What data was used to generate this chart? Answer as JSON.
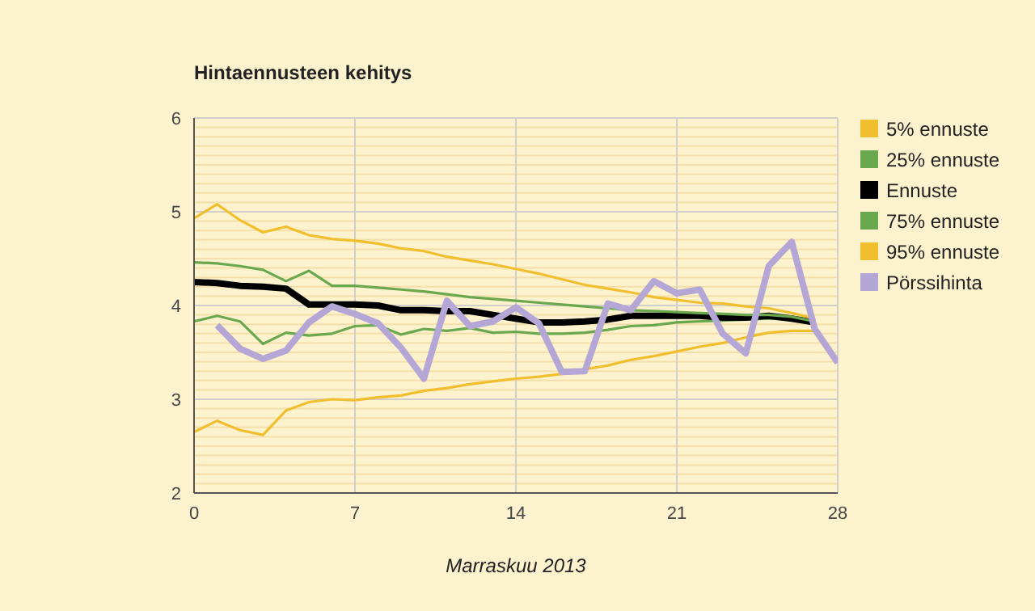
{
  "chart_data": {
    "type": "line",
    "title": "Hintaennusteen kehitys",
    "xlabel": "Marraskuu 2013",
    "x": [
      0,
      1,
      2,
      3,
      4,
      5,
      6,
      7,
      8,
      9,
      10,
      11,
      12,
      13,
      14,
      15,
      16,
      17,
      18,
      19,
      20,
      21,
      22,
      23,
      24,
      25,
      26,
      27,
      28
    ],
    "series": [
      {
        "name": "5% ennuste",
        "color": "#f1be2e",
        "values": [
          2.65,
          2.77,
          2.67,
          2.62,
          2.88,
          2.97,
          3.0,
          2.99,
          3.02,
          3.04,
          3.09,
          3.12,
          3.16,
          3.19,
          3.22,
          3.24,
          3.27,
          3.32,
          3.36,
          3.42,
          3.46,
          3.51,
          3.56,
          3.6,
          3.66,
          3.71,
          3.73,
          3.73,
          null
        ]
      },
      {
        "name": "25% ennuste",
        "color": "#6aa84f",
        "values": [
          3.83,
          3.89,
          3.83,
          3.59,
          3.71,
          3.68,
          3.7,
          3.78,
          3.79,
          3.69,
          3.75,
          3.73,
          3.76,
          3.71,
          3.72,
          3.7,
          3.7,
          3.71,
          3.74,
          3.78,
          3.79,
          3.82,
          3.83,
          3.84,
          3.85,
          3.86,
          3.85,
          3.81,
          null
        ]
      },
      {
        "name": "Ennuste",
        "color": "#000000",
        "values": [
          4.25,
          4.24,
          4.21,
          4.2,
          4.18,
          4.01,
          4.01,
          4.01,
          4.0,
          3.95,
          3.95,
          3.94,
          3.94,
          3.9,
          3.86,
          3.82,
          3.82,
          3.83,
          3.85,
          3.89,
          3.89,
          3.89,
          3.89,
          3.87,
          3.87,
          3.89,
          3.86,
          3.82,
          null
        ]
      },
      {
        "name": "75% ennuste",
        "color": "#6aa84f",
        "values": [
          4.46,
          4.45,
          4.42,
          4.38,
          4.26,
          4.37,
          4.21,
          4.21,
          4.19,
          4.17,
          4.15,
          4.12,
          4.09,
          4.07,
          4.05,
          4.03,
          4.01,
          3.99,
          3.97,
          3.95,
          3.94,
          3.93,
          3.92,
          3.91,
          3.9,
          3.9,
          3.88,
          3.83,
          null
        ]
      },
      {
        "name": "95% ennuste",
        "color": "#f1be2e",
        "values": [
          4.93,
          5.08,
          4.91,
          4.78,
          4.84,
          4.75,
          4.71,
          4.69,
          4.66,
          4.61,
          4.58,
          4.52,
          4.48,
          4.44,
          4.39,
          4.34,
          4.28,
          4.22,
          4.18,
          4.14,
          4.09,
          4.06,
          4.03,
          4.02,
          3.99,
          3.97,
          3.92,
          3.86,
          null
        ]
      },
      {
        "name": "Pörssihinta",
        "color": "#b4a7d6",
        "values": [
          null,
          3.79,
          3.54,
          3.43,
          3.52,
          3.82,
          3.99,
          3.91,
          3.81,
          3.55,
          3.22,
          4.05,
          3.78,
          3.83,
          3.98,
          3.81,
          3.29,
          3.3,
          4.02,
          3.95,
          4.26,
          4.13,
          4.17,
          3.7,
          3.49,
          4.42,
          4.68,
          3.75,
          3.39
        ]
      }
    ],
    "xlim": [
      0,
      28
    ],
    "xticks": [
      0,
      7,
      14,
      21,
      28
    ],
    "ylim": [
      2,
      6
    ],
    "yticks": [
      2,
      {
        "value": 2.1,
        "label": null
      },
      {
        "value": 2.2,
        "label": null
      },
      {
        "value": 2.3,
        "label": null
      },
      {
        "value": 2.4,
        "label": null
      },
      {
        "value": 2.5,
        "label": null
      },
      {
        "value": 2.6,
        "label": null
      },
      {
        "value": 2.7,
        "label": null
      },
      {
        "value": 2.8,
        "label": null
      },
      {
        "value": 2.9,
        "label": null
      },
      3,
      {
        "value": 3.1,
        "label": null
      },
      {
        "value": 3.2,
        "label": null
      },
      {
        "value": 3.3,
        "label": null
      },
      {
        "value": 3.4,
        "label": null
      },
      {
        "value": 3.5,
        "label": null
      },
      {
        "value": 3.6,
        "label": null
      },
      {
        "value": 3.7,
        "label": null
      },
      {
        "value": 3.8,
        "label": null
      },
      {
        "value": 3.9,
        "label": null
      },
      4,
      {
        "value": 4.1,
        "label": null
      },
      {
        "value": 4.2,
        "label": null
      },
      {
        "value": 4.3,
        "label": null
      },
      {
        "value": 4.4,
        "label": null
      },
      {
        "value": 4.5,
        "label": null
      },
      {
        "value": 4.6,
        "label": null
      },
      {
        "value": 4.7,
        "label": null
      },
      {
        "value": 4.8,
        "label": null
      },
      {
        "value": 4.9,
        "label": null
      },
      5,
      {
        "value": 5.1,
        "label": null
      },
      {
        "value": 5.2,
        "label": null
      },
      {
        "value": 5.3,
        "label": null
      },
      {
        "value": 5.4,
        "label": null
      },
      {
        "value": 5.5,
        "label": null
      },
      {
        "value": 5.6,
        "label": null
      },
      {
        "value": 5.7,
        "label": null
      },
      {
        "value": 5.8,
        "label": null
      },
      {
        "value": 5.9,
        "label": null
      },
      6
    ],
    "grid": true,
    "legend": "right",
    "marker": "none",
    "line_style": "solid"
  }
}
